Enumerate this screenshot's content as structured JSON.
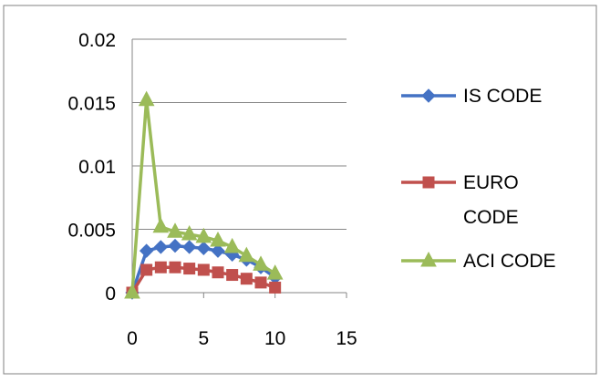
{
  "chart_data": {
    "type": "line",
    "x_ticks": [
      0,
      5,
      10,
      15
    ],
    "y_ticks": [
      "0",
      "0.005",
      "0.01",
      "0.015",
      "0.02"
    ],
    "xlim": [
      0,
      15
    ],
    "ylim": [
      0,
      0.02
    ],
    "grid": "horizontal",
    "legend_position": "right",
    "series": [
      {
        "name": "IS CODE",
        "color": "#4472C4",
        "marker": "diamond",
        "x": [
          0,
          1,
          2,
          3,
          4,
          5,
          6,
          7,
          8,
          9,
          10
        ],
        "values": [
          0.0,
          0.0033,
          0.0036,
          0.0037,
          0.0036,
          0.0035,
          0.0033,
          0.003,
          0.0026,
          0.002,
          0.0012
        ]
      },
      {
        "name": "EURO CODE",
        "label_lines": [
          "EURO",
          "CODE"
        ],
        "color": "#C0504D",
        "marker": "square",
        "x": [
          0,
          1,
          2,
          3,
          4,
          5,
          6,
          7,
          8,
          9,
          10
        ],
        "values": [
          0.0,
          0.0018,
          0.002,
          0.002,
          0.0019,
          0.0018,
          0.0016,
          0.0014,
          0.0011,
          0.0008,
          0.0004
        ]
      },
      {
        "name": "ACI CODE",
        "color": "#9BBB59",
        "marker": "triangle",
        "x": [
          0,
          1,
          2,
          3,
          4,
          5,
          6,
          7,
          8,
          9,
          10
        ],
        "values": [
          0.0,
          0.0152,
          0.0052,
          0.0048,
          0.0046,
          0.0044,
          0.0041,
          0.0036,
          0.0029,
          0.0022,
          0.0015
        ]
      }
    ]
  }
}
